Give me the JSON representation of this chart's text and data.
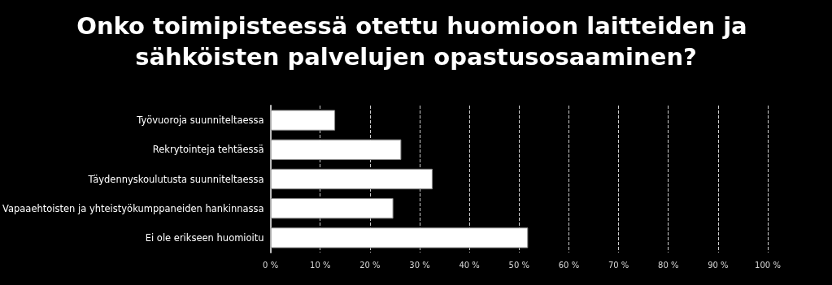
{
  "chart_data": {
    "type": "bar",
    "orientation": "horizontal",
    "title": "Onko toimipisteessä otettu huomioon laitteiden ja sähköisten palvelujen opastusosaaminen?",
    "categories": [
      "Työvuoroja suunniteltaessa",
      "Rekrytointeja tehtäessä",
      "Täydennyskoulutusta suunniteltaessa",
      "Vapaaehtoisten ja yhteistyökumppaneiden hankinnassa",
      "Ei ole erikseen huomioitu"
    ],
    "values": [
      13,
      26.3,
      32.6,
      24.7,
      51.8
    ],
    "color": "#ffffff",
    "xlim": [
      0,
      100
    ],
    "xticks": [
      {
        "value": 0,
        "label": "0 %"
      },
      {
        "value": 10,
        "label": "10 %"
      },
      {
        "value": 20,
        "label": "20 %"
      },
      {
        "value": 30,
        "label": "30 %"
      },
      {
        "value": 40,
        "label": "40 %"
      },
      {
        "value": 50,
        "label": "50 %"
      },
      {
        "value": 60,
        "label": "60 %"
      },
      {
        "value": 70,
        "label": "70 %"
      },
      {
        "value": 80,
        "label": "80 %"
      },
      {
        "value": 90,
        "label": "90 %"
      },
      {
        "value": 100,
        "label": "100 %"
      }
    ],
    "grid": "x"
  }
}
